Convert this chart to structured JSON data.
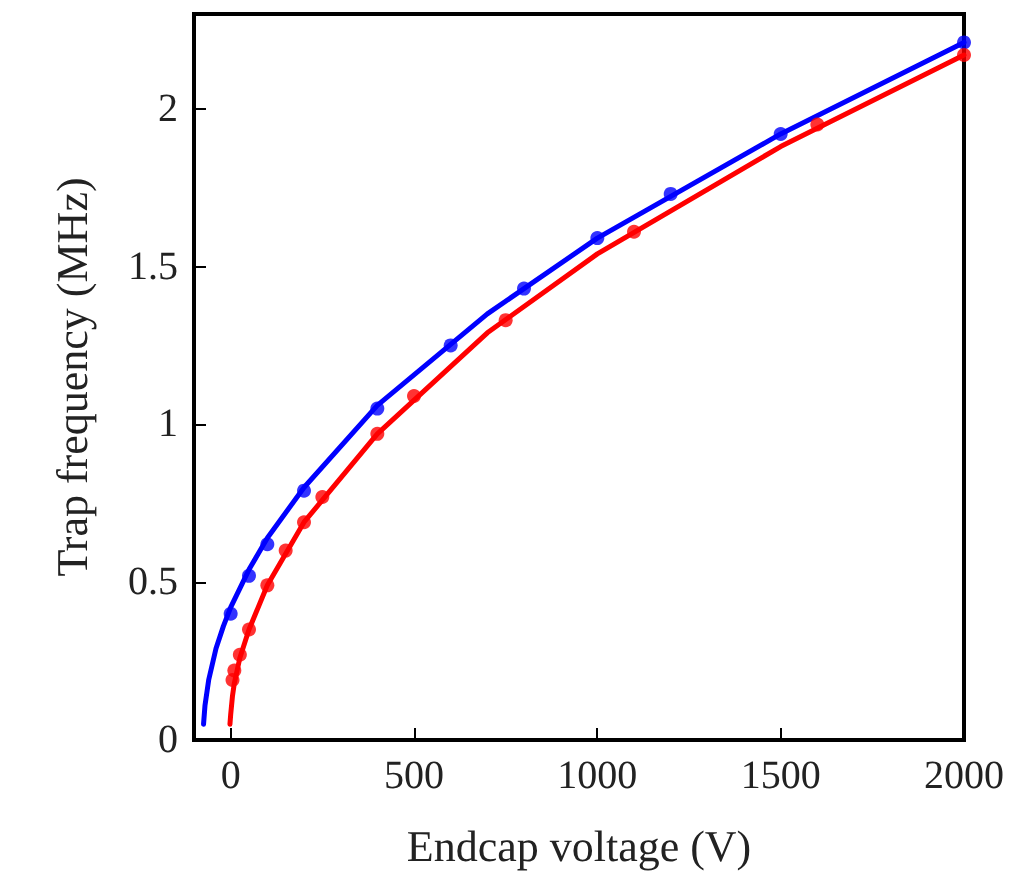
{
  "chart_data": {
    "type": "scatter",
    "xlabel": "Endcap voltage (V)",
    "ylabel": "Trap frequency (MHz)",
    "xlim": [
      -100,
      2000
    ],
    "ylim": [
      0,
      2.3
    ],
    "xticks": [
      0,
      500,
      1000,
      1500,
      2000
    ],
    "yticks": [
      0,
      0.5,
      1,
      1.5,
      2
    ],
    "grid": false,
    "marker": "circle",
    "series": [
      {
        "type": "line",
        "marker": "none",
        "color": "#0000ff",
        "x": [
          -74,
          -70,
          -60,
          -40,
          -20,
          0,
          50,
          100,
          200,
          400,
          700,
          1000,
          1500,
          2000
        ],
        "values": [
          0.05,
          0.11,
          0.19,
          0.29,
          0.36,
          0.42,
          0.54,
          0.64,
          0.8,
          1.06,
          1.35,
          1.59,
          1.92,
          2.21
        ]
      },
      {
        "type": "line",
        "marker": "none",
        "color": "#ff0000",
        "x": [
          -2,
          0,
          5,
          10,
          25,
          50,
          100,
          200,
          400,
          700,
          1000,
          1500,
          2000
        ],
        "values": [
          0.05,
          0.08,
          0.14,
          0.18,
          0.26,
          0.35,
          0.49,
          0.69,
          0.97,
          1.29,
          1.54,
          1.88,
          2.17
        ]
      },
      {
        "color": "#0000ff",
        "x": [
          0,
          50,
          100,
          200,
          400,
          600,
          800,
          1000,
          1200,
          1500,
          2000
        ],
        "values": [
          0.4,
          0.52,
          0.62,
          0.79,
          1.05,
          1.25,
          1.43,
          1.59,
          1.73,
          1.92,
          2.21
        ]
      },
      {
        "color": "#ff0000",
        "x": [
          5,
          10,
          25,
          50,
          100,
          150,
          200,
          250,
          400,
          500,
          750,
          1100,
          1600,
          2000
        ],
        "values": [
          0.19,
          0.22,
          0.27,
          0.35,
          0.49,
          0.6,
          0.69,
          0.77,
          0.97,
          1.09,
          1.33,
          1.61,
          1.95,
          2.17
        ]
      }
    ]
  }
}
